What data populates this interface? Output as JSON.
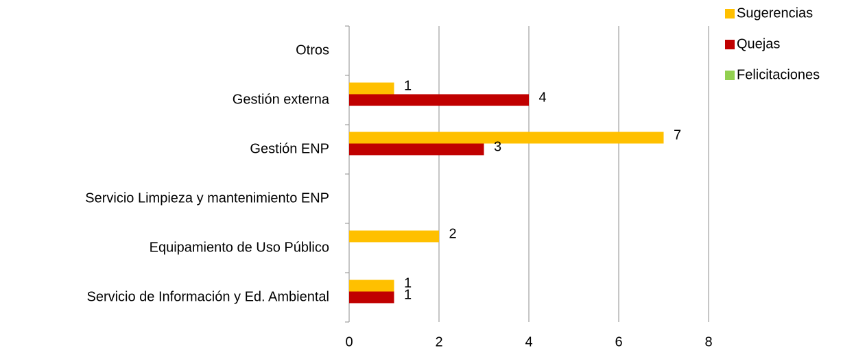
{
  "chart_data": {
    "type": "hbar",
    "categories": [
      "Servicio de Información y Ed. Ambiental",
      "Equipamiento de Uso Público",
      "Servicio Limpieza y mantenimiento ENP",
      "Gestión ENP",
      "Gestión externa",
      "Otros"
    ],
    "series": [
      {
        "name": "Sugerencias",
        "color": "#ffc000",
        "values": [
          1,
          2,
          null,
          7,
          1,
          null
        ]
      },
      {
        "name": "Quejas",
        "color": "#c00000",
        "values": [
          1,
          null,
          null,
          3,
          4,
          null
        ]
      },
      {
        "name": "Felicitaciones",
        "color": "#92d050",
        "values": [
          null,
          null,
          null,
          null,
          null,
          null
        ]
      }
    ],
    "xlim": [
      0,
      8
    ],
    "xticks": [
      0,
      2,
      4,
      6,
      8
    ],
    "grid": true,
    "legend": "top-right"
  }
}
